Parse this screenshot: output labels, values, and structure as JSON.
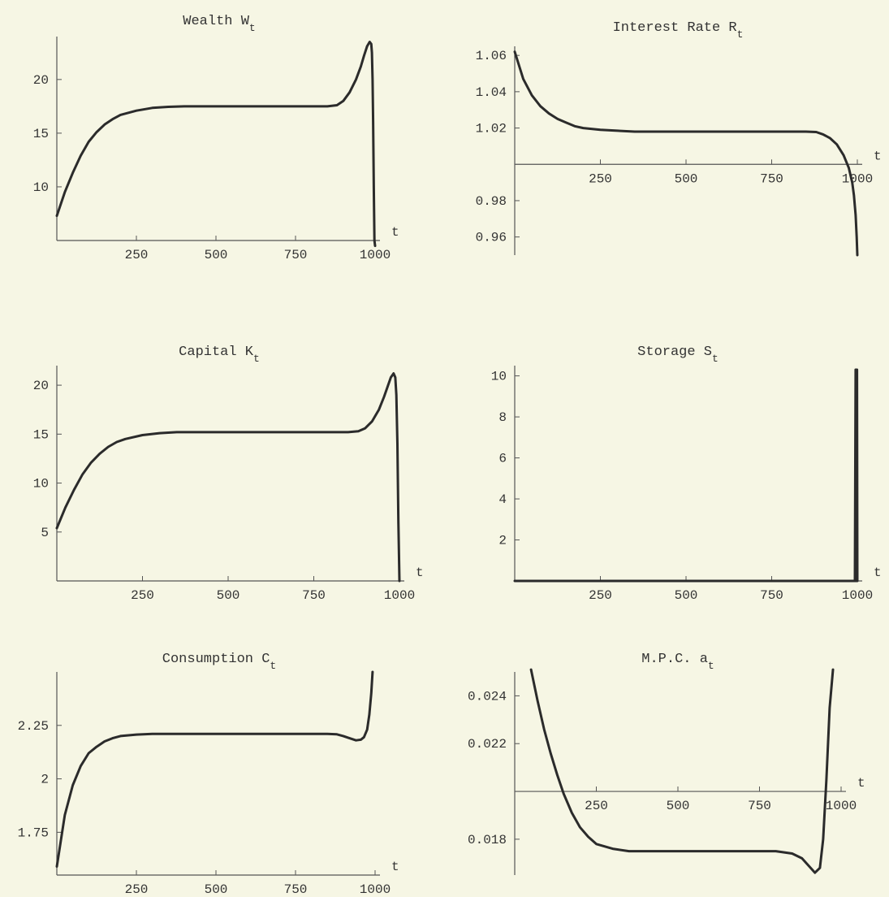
{
  "chart_data": [
    {
      "type": "line",
      "title": "Wealth W",
      "title_sub": "t",
      "xlabel": "t",
      "xlim": [
        0,
        1000
      ],
      "ylim": [
        5,
        24
      ],
      "x_ticks": [
        250,
        500,
        750,
        1000
      ],
      "y_ticks": [
        10,
        15,
        20
      ],
      "series": [
        {
          "x": [
            0,
            25,
            50,
            75,
            100,
            125,
            150,
            175,
            200,
            250,
            300,
            350,
            400,
            500,
            600,
            700,
            800,
            850,
            880,
            900,
            920,
            940,
            955,
            965,
            975,
            983,
            988,
            990,
            992,
            994,
            996,
            998,
            1000
          ],
          "values": [
            7.3,
            9.5,
            11.3,
            12.9,
            14.2,
            15.1,
            15.8,
            16.3,
            16.7,
            17.1,
            17.35,
            17.45,
            17.5,
            17.5,
            17.5,
            17.5,
            17.5,
            17.5,
            17.6,
            18.0,
            18.8,
            20.0,
            21.2,
            22.2,
            23.1,
            23.5,
            23.3,
            22.5,
            20.0,
            16.0,
            10.0,
            5.0,
            4.5
          ]
        }
      ]
    },
    {
      "type": "line",
      "title": "Interest Rate R",
      "title_sub": "t",
      "xlabel": "t",
      "xlim": [
        0,
        1000
      ],
      "ylim": [
        0.95,
        1.065
      ],
      "x_ticks": [
        250,
        500,
        750,
        1000
      ],
      "y_ticks": [
        0.96,
        0.98,
        1.02,
        1.04,
        1.06
      ],
      "y_tick_labels": [
        "0.96",
        "0.98",
        "1.02",
        "1.04",
        "1.06"
      ],
      "x_axis_at": 1.0,
      "series": [
        {
          "x": [
            0,
            25,
            50,
            75,
            100,
            125,
            150,
            175,
            200,
            250,
            300,
            350,
            400,
            500,
            600,
            700,
            800,
            850,
            880,
            900,
            920,
            940,
            960,
            975,
            985,
            990,
            995,
            998,
            1000
          ],
          "values": [
            1.062,
            1.047,
            1.038,
            1.032,
            1.028,
            1.025,
            1.023,
            1.021,
            1.02,
            1.019,
            1.0185,
            1.018,
            1.018,
            1.018,
            1.018,
            1.018,
            1.018,
            1.018,
            1.0178,
            1.0165,
            1.0145,
            1.011,
            1.005,
            0.998,
            0.99,
            0.983,
            0.972,
            0.96,
            0.95
          ]
        }
      ]
    },
    {
      "type": "line",
      "title": "Capital K",
      "title_sub": "t",
      "xlabel": "t",
      "xlim": [
        0,
        1000
      ],
      "ylim": [
        0,
        22
      ],
      "x_ticks": [
        250,
        500,
        750,
        1000
      ],
      "y_ticks": [
        5,
        10,
        15,
        20
      ],
      "series": [
        {
          "x": [
            0,
            25,
            50,
            75,
            100,
            125,
            150,
            175,
            200,
            250,
            300,
            350,
            400,
            500,
            600,
            700,
            800,
            850,
            880,
            900,
            920,
            940,
            955,
            965,
            975,
            983,
            988,
            991,
            994,
            997,
            1000
          ],
          "values": [
            5.4,
            7.5,
            9.3,
            10.9,
            12.1,
            13.0,
            13.7,
            14.2,
            14.5,
            14.9,
            15.1,
            15.2,
            15.2,
            15.2,
            15.2,
            15.2,
            15.2,
            15.2,
            15.3,
            15.6,
            16.3,
            17.5,
            18.8,
            19.8,
            20.8,
            21.2,
            20.8,
            19.0,
            14.0,
            6.0,
            0.0
          ]
        }
      ]
    },
    {
      "type": "line",
      "title": "Storage S",
      "title_sub": "t",
      "xlabel": "t",
      "xlim": [
        0,
        1000
      ],
      "ylim": [
        0,
        10.5
      ],
      "x_ticks": [
        250,
        500,
        750,
        1000
      ],
      "y_ticks": [
        2,
        4,
        6,
        8,
        10
      ],
      "series": [
        {
          "x": [
            0,
            250,
            500,
            750,
            990,
            993,
            995,
            996,
            997,
            998,
            999,
            1000
          ],
          "values": [
            0,
            0,
            0,
            0,
            0,
            0,
            10.3,
            0,
            10.3,
            0,
            10.3,
            0
          ]
        }
      ]
    },
    {
      "type": "line",
      "title": "Consumption C",
      "title_sub": "t",
      "xlabel": "t",
      "xlim": [
        0,
        1000
      ],
      "ylim": [
        1.55,
        2.5
      ],
      "x_ticks": [
        250,
        500,
        750,
        1000
      ],
      "y_ticks": [
        1.75,
        2,
        2.25
      ],
      "y_tick_labels": [
        "1.75",
        "2",
        "2.25"
      ],
      "series": [
        {
          "x": [
            0,
            25,
            50,
            75,
            100,
            125,
            150,
            175,
            200,
            250,
            300,
            350,
            400,
            500,
            600,
            700,
            800,
            850,
            880,
            900,
            920,
            940,
            955,
            965,
            975,
            982,
            988,
            992
          ],
          "values": [
            1.59,
            1.83,
            1.97,
            2.06,
            2.12,
            2.15,
            2.175,
            2.19,
            2.2,
            2.207,
            2.21,
            2.21,
            2.21,
            2.21,
            2.21,
            2.21,
            2.21,
            2.21,
            2.208,
            2.2,
            2.19,
            2.18,
            2.183,
            2.195,
            2.23,
            2.3,
            2.4,
            2.5
          ]
        }
      ]
    },
    {
      "type": "line",
      "title": "M.P.C. a",
      "title_sub": "t",
      "xlabel": "t",
      "xlim": [
        0,
        1000
      ],
      "ylim": [
        0.0165,
        0.025
      ],
      "x_ticks": [
        250,
        500,
        750,
        1000
      ],
      "y_ticks": [
        0.018,
        0.022,
        0.024
      ],
      "y_tick_labels": [
        "0.018",
        "0.022",
        "0.024"
      ],
      "x_axis_at": 0.02,
      "series": [
        {
          "x": [
            50,
            70,
            90,
            110,
            130,
            150,
            175,
            200,
            225,
            250,
            300,
            350,
            400,
            500,
            600,
            700,
            800,
            850,
            880,
            900,
            920,
            935,
            945,
            955,
            965,
            975
          ],
          "values": [
            0.0251,
            0.0238,
            0.0226,
            0.0216,
            0.0207,
            0.0199,
            0.0191,
            0.0185,
            0.0181,
            0.0178,
            0.0176,
            0.0175,
            0.0175,
            0.0175,
            0.0175,
            0.0175,
            0.0175,
            0.0174,
            0.0172,
            0.0169,
            0.0166,
            0.0168,
            0.018,
            0.0205,
            0.0235,
            0.0251
          ]
        }
      ]
    }
  ]
}
